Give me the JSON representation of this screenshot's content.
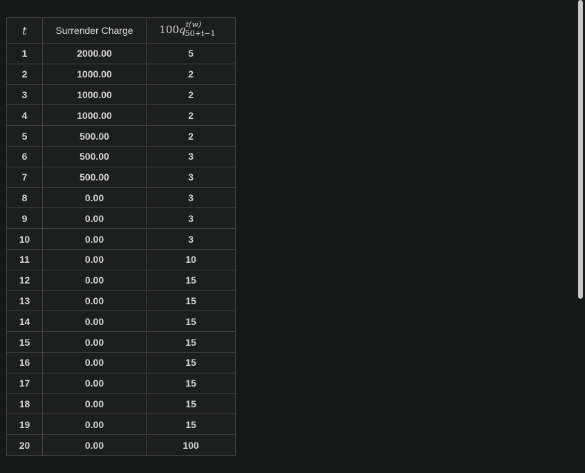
{
  "table": {
    "headers": {
      "t": "t",
      "surrender_charge": "Surrender Charge",
      "q_base": "100",
      "q_var": "q",
      "q_sup": "t(w)",
      "q_sub": "50+t−1"
    },
    "rows": [
      {
        "t": "1",
        "surrender_charge": "2000.00",
        "q": "5"
      },
      {
        "t": "2",
        "surrender_charge": "1000.00",
        "q": "2"
      },
      {
        "t": "3",
        "surrender_charge": "1000.00",
        "q": "2"
      },
      {
        "t": "4",
        "surrender_charge": "1000.00",
        "q": "2"
      },
      {
        "t": "5",
        "surrender_charge": "500.00",
        "q": "2"
      },
      {
        "t": "6",
        "surrender_charge": "500.00",
        "q": "3"
      },
      {
        "t": "7",
        "surrender_charge": "500.00",
        "q": "3"
      },
      {
        "t": "8",
        "surrender_charge": "0.00",
        "q": "3"
      },
      {
        "t": "9",
        "surrender_charge": "0.00",
        "q": "3"
      },
      {
        "t": "10",
        "surrender_charge": "0.00",
        "q": "3"
      },
      {
        "t": "11",
        "surrender_charge": "0.00",
        "q": "10"
      },
      {
        "t": "12",
        "surrender_charge": "0.00",
        "q": "15"
      },
      {
        "t": "13",
        "surrender_charge": "0.00",
        "q": "15"
      },
      {
        "t": "14",
        "surrender_charge": "0.00",
        "q": "15"
      },
      {
        "t": "15",
        "surrender_charge": "0.00",
        "q": "15"
      },
      {
        "t": "16",
        "surrender_charge": "0.00",
        "q": "15"
      },
      {
        "t": "17",
        "surrender_charge": "0.00",
        "q": "15"
      },
      {
        "t": "18",
        "surrender_charge": "0.00",
        "q": "15"
      },
      {
        "t": "19",
        "surrender_charge": "0.00",
        "q": "15"
      },
      {
        "t": "20",
        "surrender_charge": "0.00",
        "q": "100"
      }
    ]
  },
  "colors": {
    "background": "#171818",
    "table_background": "#1d1e1e",
    "border": "#424242",
    "text": "#d4d4d4",
    "scrollbar_thumb": "#c7c7c7"
  }
}
